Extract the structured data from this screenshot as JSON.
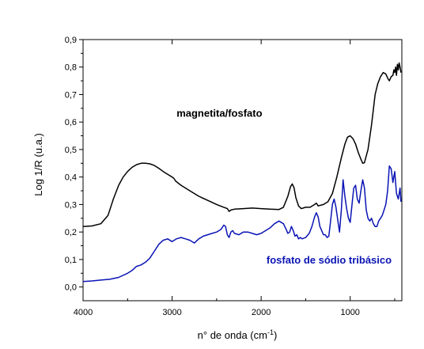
{
  "chart_data": {
    "type": "line",
    "xlabel": "n° de onda (cm",
    "xlabel_sup": "-1",
    "xlabel_close": ")",
    "ylabel": "Log 1/R (u.a.)",
    "xlim": [
      4000,
      420
    ],
    "ylim": [
      -0.05,
      0.9
    ],
    "x_ticks": [
      4000,
      3000,
      2000,
      1000
    ],
    "x_tick_labels": [
      "4000",
      "3000",
      "2000",
      "1000"
    ],
    "y_ticks": [
      0.0,
      0.1,
      0.2,
      0.3,
      0.4,
      0.5,
      0.6,
      0.7,
      0.8,
      0.9
    ],
    "y_tick_labels": [
      "0,0",
      "0,1",
      "0,2",
      "0,3",
      "0,4",
      "0,5",
      "0,6",
      "0,7",
      "0,8",
      "0,9"
    ],
    "grid": false,
    "series": [
      {
        "name": "magnetita/fosfato",
        "color": "#000000",
        "x": [
          4000,
          3900,
          3800,
          3720,
          3660,
          3600,
          3550,
          3500,
          3450,
          3400,
          3350,
          3300,
          3250,
          3200,
          3150,
          3100,
          3050,
          3000,
          2980,
          2960,
          2900,
          2800,
          2700,
          2600,
          2500,
          2420,
          2380,
          2360,
          2340,
          2300,
          2200,
          2100,
          2000,
          1900,
          1800,
          1750,
          1700,
          1670,
          1650,
          1630,
          1610,
          1580,
          1550,
          1500,
          1450,
          1400,
          1380,
          1360,
          1300,
          1250,
          1200,
          1150,
          1100,
          1060,
          1030,
          1000,
          970,
          940,
          910,
          880,
          860,
          840,
          800,
          760,
          720,
          690,
          660,
          630,
          600,
          580,
          560,
          540,
          520,
          510,
          500,
          490,
          480,
          470,
          460,
          450,
          440,
          430
        ],
        "y": [
          0.22,
          0.222,
          0.23,
          0.26,
          0.32,
          0.37,
          0.4,
          0.42,
          0.435,
          0.445,
          0.45,
          0.45,
          0.448,
          0.442,
          0.432,
          0.42,
          0.41,
          0.4,
          0.395,
          0.385,
          0.37,
          0.35,
          0.33,
          0.315,
          0.3,
          0.29,
          0.285,
          0.275,
          0.28,
          0.283,
          0.285,
          0.287,
          0.285,
          0.283,
          0.282,
          0.29,
          0.33,
          0.365,
          0.375,
          0.36,
          0.325,
          0.295,
          0.285,
          0.29,
          0.29,
          0.3,
          0.305,
          0.295,
          0.3,
          0.31,
          0.34,
          0.4,
          0.47,
          0.52,
          0.545,
          0.55,
          0.54,
          0.52,
          0.49,
          0.465,
          0.45,
          0.452,
          0.5,
          0.59,
          0.7,
          0.74,
          0.765,
          0.78,
          0.775,
          0.76,
          0.75,
          0.765,
          0.77,
          0.79,
          0.78,
          0.8,
          0.77,
          0.81,
          0.79,
          0.815,
          0.8,
          0.78
        ]
      },
      {
        "name": "fosfato de sódio tribásico",
        "color": "#0a14b4",
        "x": [
          4000,
          3900,
          3800,
          3700,
          3600,
          3500,
          3450,
          3400,
          3350,
          3300,
          3250,
          3200,
          3150,
          3100,
          3050,
          3000,
          2950,
          2900,
          2850,
          2800,
          2750,
          2700,
          2650,
          2600,
          2550,
          2500,
          2450,
          2420,
          2400,
          2380,
          2360,
          2340,
          2320,
          2300,
          2250,
          2200,
          2150,
          2100,
          2050,
          2000,
          1950,
          1900,
          1850,
          1800,
          1750,
          1720,
          1700,
          1680,
          1660,
          1640,
          1620,
          1600,
          1580,
          1560,
          1540,
          1500,
          1460,
          1430,
          1400,
          1380,
          1360,
          1340,
          1320,
          1300,
          1280,
          1260,
          1240,
          1220,
          1200,
          1180,
          1160,
          1140,
          1120,
          1100,
          1080,
          1060,
          1040,
          1020,
          1000,
          980,
          960,
          940,
          920,
          900,
          880,
          860,
          840,
          820,
          800,
          780,
          760,
          740,
          720,
          700,
          680,
          660,
          640,
          620,
          600,
          580,
          560,
          540,
          520,
          500,
          480,
          460,
          440,
          430
        ],
        "y": [
          0.02,
          0.022,
          0.025,
          0.028,
          0.035,
          0.05,
          0.06,
          0.075,
          0.08,
          0.09,
          0.105,
          0.13,
          0.155,
          0.17,
          0.175,
          0.165,
          0.175,
          0.18,
          0.175,
          0.17,
          0.16,
          0.175,
          0.185,
          0.19,
          0.195,
          0.2,
          0.21,
          0.225,
          0.22,
          0.19,
          0.18,
          0.2,
          0.205,
          0.195,
          0.19,
          0.2,
          0.2,
          0.195,
          0.19,
          0.195,
          0.205,
          0.215,
          0.23,
          0.24,
          0.23,
          0.21,
          0.195,
          0.2,
          0.22,
          0.205,
          0.185,
          0.19,
          0.175,
          0.18,
          0.175,
          0.18,
          0.195,
          0.22,
          0.255,
          0.27,
          0.255,
          0.22,
          0.205,
          0.19,
          0.19,
          0.18,
          0.185,
          0.24,
          0.3,
          0.32,
          0.29,
          0.245,
          0.2,
          0.28,
          0.39,
          0.33,
          0.285,
          0.25,
          0.235,
          0.3,
          0.36,
          0.37,
          0.32,
          0.305,
          0.35,
          0.39,
          0.36,
          0.28,
          0.25,
          0.24,
          0.25,
          0.23,
          0.22,
          0.22,
          0.24,
          0.25,
          0.26,
          0.28,
          0.3,
          0.35,
          0.44,
          0.43,
          0.38,
          0.42,
          0.34,
          0.32,
          0.36,
          0.31
        ]
      }
    ],
    "annotations": [
      {
        "text": "magnetita/fosfato",
        "x": 2950,
        "y": 0.62,
        "color": "#000000"
      },
      {
        "text": "fosfato de sódio tribásico",
        "x": 1940,
        "y": 0.085,
        "color": "#0a14b4"
      }
    ]
  }
}
